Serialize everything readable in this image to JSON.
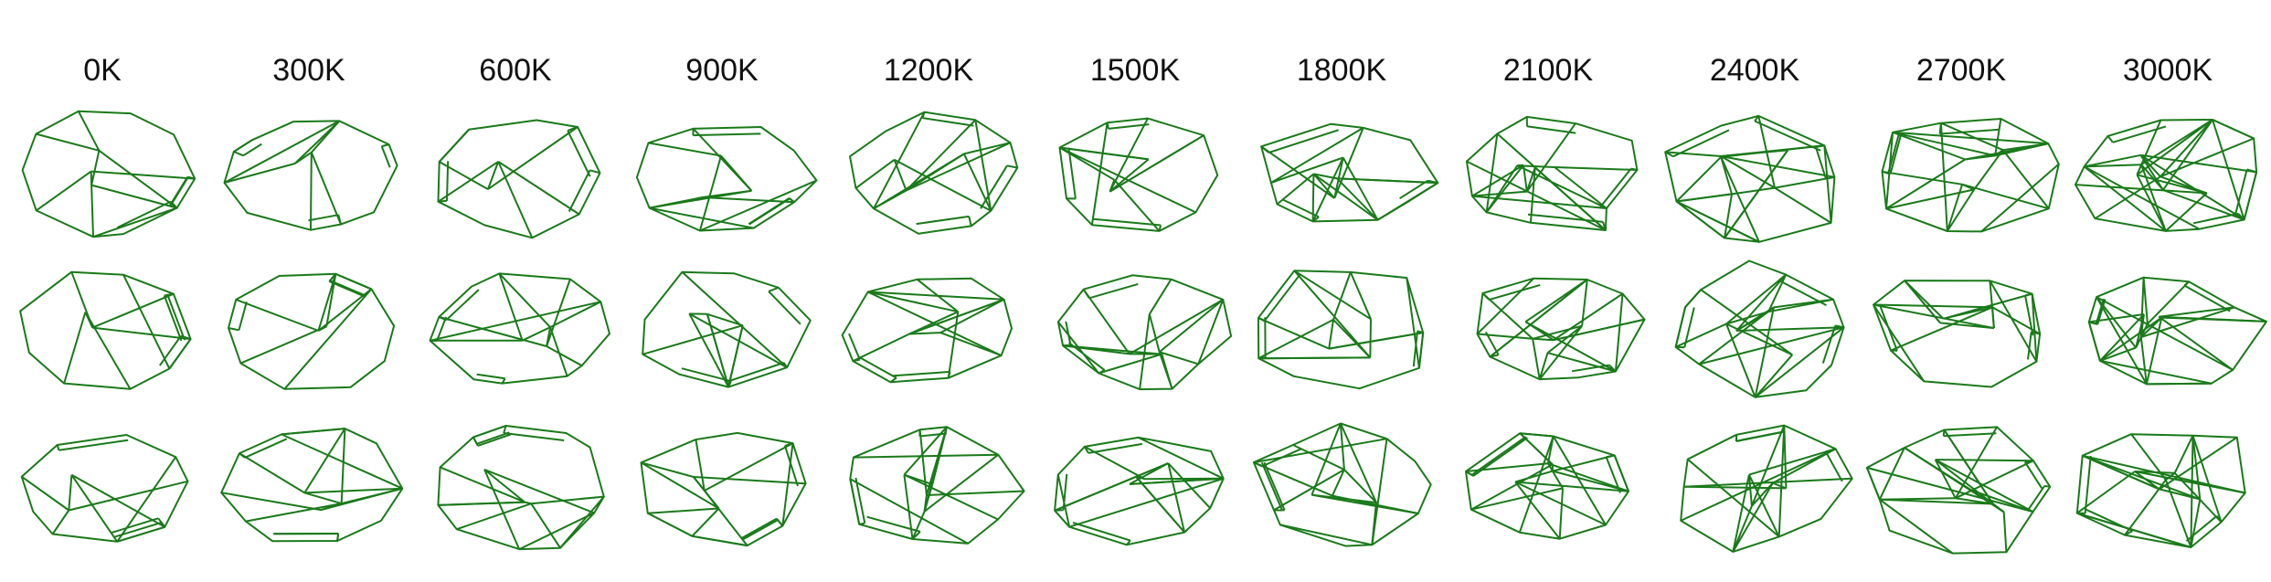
{
  "figure": {
    "columns": [
      "0K",
      "300K",
      "600K",
      "900K",
      "1200K",
      "1500K",
      "1800K",
      "2100K",
      "2400K",
      "2700K",
      "3000K"
    ],
    "rows": 3,
    "edge_color": "#1a7a1a"
  }
}
